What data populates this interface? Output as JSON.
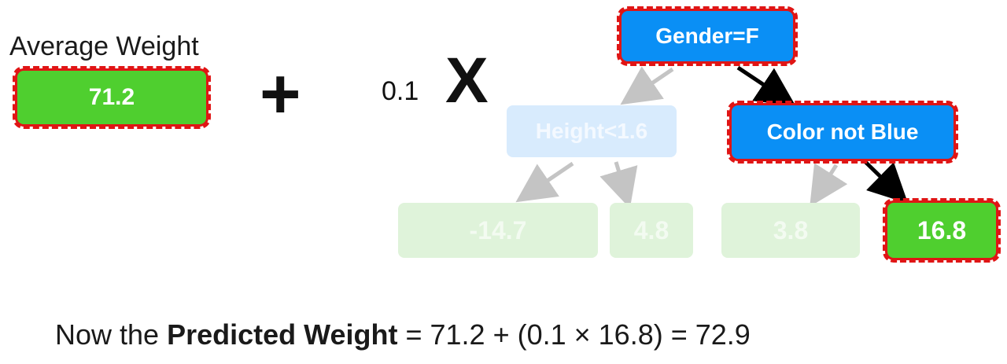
{
  "average": {
    "label": "Average Weight",
    "value": "71.2"
  },
  "operators": {
    "plus": "+",
    "learning_rate": "0.1",
    "times": "X"
  },
  "tree": {
    "root": "Gender=F",
    "left_node": "Height<1.6",
    "right_node": "Color not Blue",
    "leaves": [
      "-14.7",
      "4.8",
      "3.8",
      "16.8"
    ]
  },
  "formula": {
    "prefix": "Now the ",
    "bold": "Predicted Weight",
    "rest": " = 71.2 + (0.1 × 16.8) = 72.9"
  },
  "colors": {
    "highlight": "#e01515",
    "green": "#4fcf2f",
    "blue": "#0a8ff5"
  }
}
